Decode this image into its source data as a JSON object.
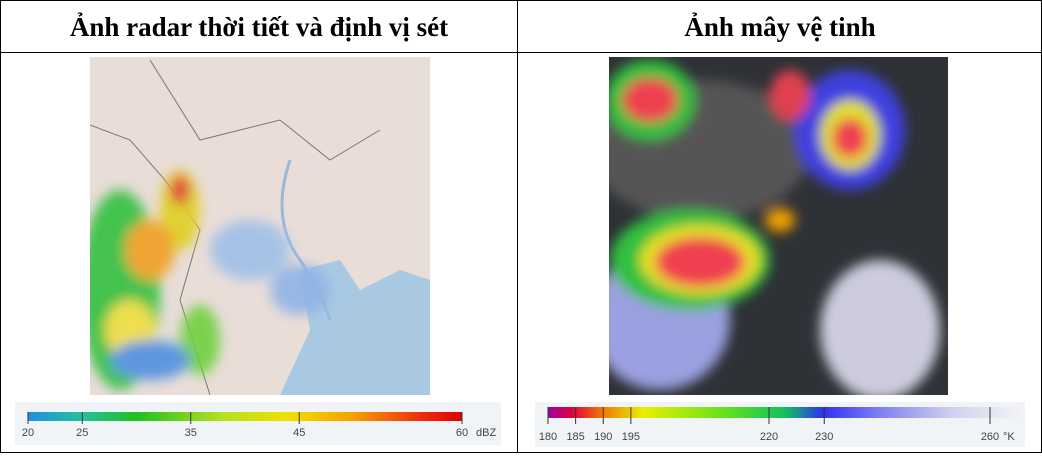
{
  "header": {
    "left": "Ảnh radar thời tiết và định vị sét",
    "right": "Ảnh mây vệ tinh"
  },
  "radar_scale": {
    "ticks": [
      20,
      25,
      35,
      45,
      60
    ],
    "unit": "dBZ"
  },
  "satellite_scale": {
    "ticks": [
      180,
      185,
      190,
      195,
      220,
      230,
      260
    ],
    "unit": "°K"
  }
}
